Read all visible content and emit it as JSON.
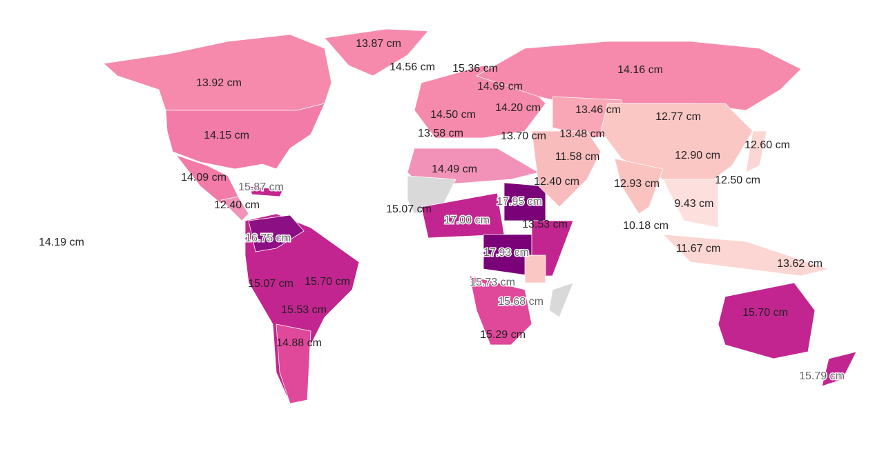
{
  "labels": [
    "13.87 cm",
    "14.56 cm",
    "15.36 cm",
    "14.16 cm",
    "13.92 cm",
    "14.69 cm",
    "14.20 cm",
    "13.46 cm",
    "14.50 cm",
    "12.77 cm",
    "14.15 cm",
    "13.58 cm",
    "13.70 cm",
    "13.48 cm",
    "12.60 cm",
    "11.58 cm",
    "12.90 cm",
    "14.49 cm",
    "14.09 cm",
    "12.40 cm",
    "12.93 cm",
    "12.50 cm",
    "15.87 cm",
    "12.40 cm",
    "15.07 cm",
    "17.95 cm",
    "9.43 cm",
    "17.00 cm",
    "13.53 cm",
    "10.18 cm",
    "16.75 cm",
    "14.19 cm",
    "11.67 cm",
    "17.93 cm",
    "13.62 cm",
    "15.07 cm",
    "15.70 cm",
    "15.73 cm",
    "15.68 cm",
    "15.53 cm",
    "15.70 cm",
    "14.88 cm",
    "15.29 cm",
    "15.79 cm"
  ]
}
